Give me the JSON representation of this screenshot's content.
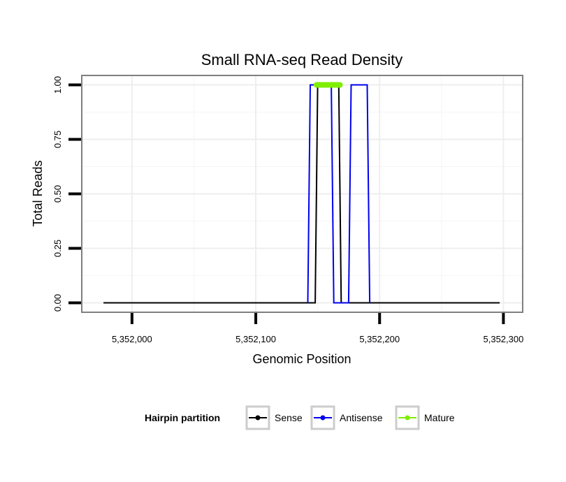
{
  "chart_data": {
    "type": "line",
    "title": "Small RNA-seq Read Density",
    "xlabel": "Genomic Position",
    "ylabel": "Total Reads",
    "xlim": [
      5351960,
      5352315
    ],
    "ylim": [
      -0.04,
      1.04
    ],
    "x_ticks": [
      5352000,
      5352100,
      5352200,
      5352300
    ],
    "x_tick_labels": [
      "5,352,000",
      "5,352,100",
      "5,352,200",
      "5,352,300"
    ],
    "y_ticks": [
      0,
      0.25,
      0.5,
      0.75,
      1.0
    ],
    "y_tick_labels": [
      "0.00",
      "0.25",
      "0.50",
      "0.75",
      "1.00"
    ],
    "grid": true,
    "legend": {
      "title": "Hairpin partition",
      "position": "bottom",
      "entries": [
        "Sense",
        "Antisense",
        "Mature"
      ]
    },
    "series": [
      {
        "name": "Sense",
        "color": "#000000",
        "points": [
          [
            5351977,
            0
          ],
          [
            5352148,
            0
          ],
          [
            5352150,
            1
          ],
          [
            5352167,
            1
          ],
          [
            5352169,
            0
          ],
          [
            5352297,
            0
          ]
        ]
      },
      {
        "name": "Antisense",
        "color": "#0000ee",
        "points": [
          [
            5352142,
            0
          ],
          [
            5352144,
            1
          ],
          [
            5352161,
            1
          ],
          [
            5352163,
            0
          ],
          [
            5352175,
            0
          ],
          [
            5352177,
            1
          ],
          [
            5352190,
            1
          ],
          [
            5352192,
            0
          ]
        ]
      },
      {
        "name": "Mature",
        "color": "#7fee00",
        "points": [
          [
            5352149,
            1
          ],
          [
            5352168,
            1
          ]
        ]
      }
    ]
  }
}
